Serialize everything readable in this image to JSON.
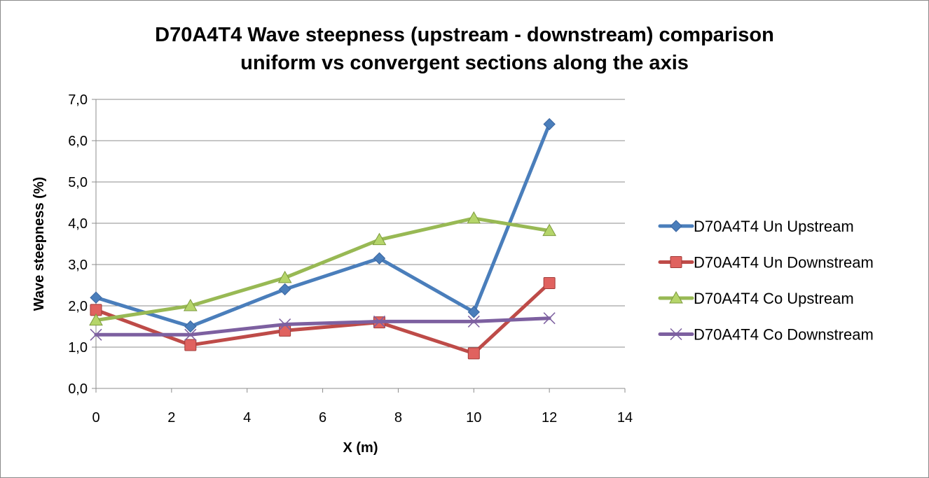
{
  "chart_data": {
    "type": "line",
    "title_line1": "D70A4T4 Wave steepness (upstream - downstream) comparison",
    "title_line2": "uniform vs convergent sections along the axis",
    "xlabel": "X (m)",
    "ylabel": "Wave steepness (%)",
    "xlim": [
      0,
      14
    ],
    "ylim": [
      0,
      7
    ],
    "x_ticks": [
      0,
      2,
      4,
      6,
      8,
      10,
      12,
      14
    ],
    "y_ticks": [
      "0,0",
      "1,0",
      "2,0",
      "3,0",
      "4,0",
      "5,0",
      "6,0",
      "7,0"
    ],
    "grid": "horizontal",
    "legend_position": "right",
    "series": [
      {
        "name": "D70A4T4 Un Upstream",
        "color": "#4a7ebb",
        "marker": "diamond",
        "x": [
          0,
          2.5,
          5,
          7.5,
          10,
          12
        ],
        "y": [
          2.2,
          1.5,
          2.4,
          3.15,
          1.85,
          6.4
        ]
      },
      {
        "name": "D70A4T4 Un Downstream",
        "color": "#be4b48",
        "marker": "square",
        "x": [
          0,
          2.5,
          5,
          7.5,
          10,
          12
        ],
        "y": [
          1.9,
          1.05,
          1.4,
          1.6,
          0.85,
          2.55
        ]
      },
      {
        "name": "D70A4T4 Co Upstream",
        "color": "#98b954",
        "marker": "triangle",
        "x": [
          0,
          2.5,
          5,
          7.5,
          10,
          12
        ],
        "y": [
          1.65,
          2.0,
          2.68,
          3.6,
          4.12,
          3.82
        ]
      },
      {
        "name": "D70A4T4 Co Downstream",
        "color": "#7d60a0",
        "marker": "x",
        "x": [
          0,
          2.5,
          5,
          7.5,
          10,
          12
        ],
        "y": [
          1.3,
          1.3,
          1.55,
          1.62,
          1.62,
          1.7
        ]
      }
    ]
  }
}
